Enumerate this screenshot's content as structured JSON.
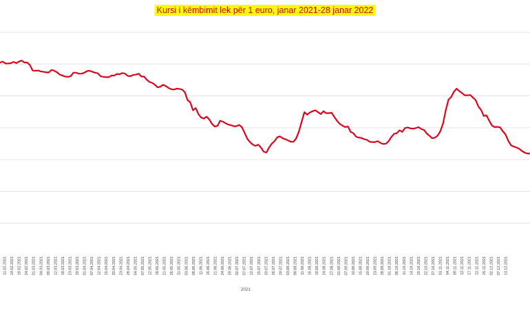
{
  "chart_data": {
    "type": "line",
    "title": "Kursi i këmbimit lek për 1 euro, janar 2021-28 janar 2022",
    "xlabel": "2021",
    "ylabel": "",
    "grid": true,
    "color": "#e0001a",
    "title_bg": "#ffff00",
    "title_color": "#d40000",
    "tick_labels": [
      "11.02.2021",
      "14.02.2021",
      "19.02.2021",
      "24.02.2021",
      "01.03.2021",
      "04.03.2021",
      "09.03.2021",
      "12.03.2021",
      "18.03.2021",
      "23.03.2021",
      "29.03.2021",
      "01.04.2021",
      "07.04.2021",
      "12.04.2021",
      "15.04.2021",
      "20.04.2021",
      "23.04.2021",
      "28.04.2021",
      "04.05.2021",
      "07.05.2021",
      "12.05.2021",
      "18.05.2021",
      "21.05.2021",
      "26.05.2021",
      "31.05.2021",
      "03.06.2021",
      "08.06.2021",
      "11.06.2021",
      "16.06.2021",
      "21.06.2021",
      "24.06.2021",
      "29.06.2021",
      "02.07.2021",
      "07.07.2021",
      "12.07.2021",
      "15.07.2021",
      "20.07.2021",
      "26.07.2021",
      "29.07.2021",
      "03.08.2021",
      "06.08.2021",
      "11.08.2021",
      "16.08.2021",
      "19.08.2021",
      "24.08.2021",
      "27.08.2021",
      "01.09.2021",
      "07.09.2021",
      "10.09.2021",
      "15.09.2021",
      "20.09.2021",
      "23.09.2021",
      "28.09.2021",
      "01.10.2021",
      "06.10.2021",
      "11.10.2021",
      "14.10.2021",
      "19.10.2021",
      "22.10.2021",
      "27.10.2021",
      "01.11.2021",
      "04.11.2021",
      "09.11.2021",
      "12.11.2021",
      "17.11.2021",
      "22.11.2021",
      "25.11.2021",
      "02.12.2021",
      "07.12.2021",
      "13.12.2021"
    ],
    "series": [
      {
        "values": [
          123.55,
          123.58,
          123.52,
          123.52,
          123.53,
          123.57,
          123.53,
          123.58,
          123.61,
          123.55,
          123.55,
          123.47,
          123.3,
          123.29,
          123.3,
          123.27,
          123.26,
          123.24,
          123.24,
          123.32,
          123.29,
          123.24,
          123.17,
          123.14,
          123.11,
          123.1,
          123.12,
          123.23,
          123.23,
          123.2,
          123.2,
          123.23,
          123.28,
          123.29,
          123.26,
          123.23,
          123.21,
          123.12,
          123.1,
          123.09,
          123.09,
          123.14,
          123.14,
          123.19,
          123.18,
          123.22,
          123.2,
          123.13,
          123.12,
          123.16,
          123.17,
          123.2,
          123.11,
          123.11,
          123.01,
          122.94,
          122.91,
          122.85,
          122.77,
          122.79,
          122.85,
          122.81,
          122.75,
          122.71,
          122.7,
          122.73,
          122.72,
          122.7,
          122.62,
          122.37,
          122.3,
          122.05,
          122.12,
          121.93,
          121.82,
          121.79,
          121.85,
          121.76,
          121.62,
          121.54,
          121.56,
          121.72,
          121.69,
          121.64,
          121.6,
          121.58,
          121.55,
          121.55,
          121.59,
          121.52,
          121.34,
          121.15,
          121.05,
          120.97,
          120.93,
          120.97,
          120.88,
          120.75,
          120.72,
          120.88,
          121.0,
          121.08,
          121.2,
          121.23,
          121.17,
          121.14,
          121.1,
          121.06,
          121.06,
          121.17,
          121.39,
          121.69,
          121.99,
          121.91,
          121.98,
          122.02,
          122.05,
          121.99,
          121.93,
          122.02,
          121.96,
          121.96,
          121.97,
          121.84,
          121.72,
          121.62,
          121.57,
          121.52,
          121.54,
          121.37,
          121.33,
          121.22,
          121.19,
          121.18,
          121.14,
          121.12,
          121.06,
          121.05,
          121.05,
          121.08,
          121.02,
          120.99
        ]
      },
      {
        "values": [
          121.0,
          121.08,
          121.21,
          121.31,
          121.33,
          121.42,
          121.37,
          121.49,
          121.51,
          121.48,
          121.47,
          121.49,
          121.52,
          121.46,
          121.43,
          121.32,
          121.25,
          121.17,
          121.19,
          121.25,
          121.39,
          121.63,
          122.05,
          122.38,
          122.47,
          122.63,
          122.73,
          122.65,
          122.59,
          122.52,
          122.52,
          122.53,
          122.45,
          122.37,
          122.17,
          122.06,
          121.87,
          121.89,
          121.72,
          121.57,
          121.52,
          121.53,
          121.51,
          121.39,
          121.29,
          121.09,
          120.95,
          120.91,
          120.88,
          120.84,
          120.77,
          120.72,
          120.69,
          120.69
        ]
      }
    ]
  }
}
